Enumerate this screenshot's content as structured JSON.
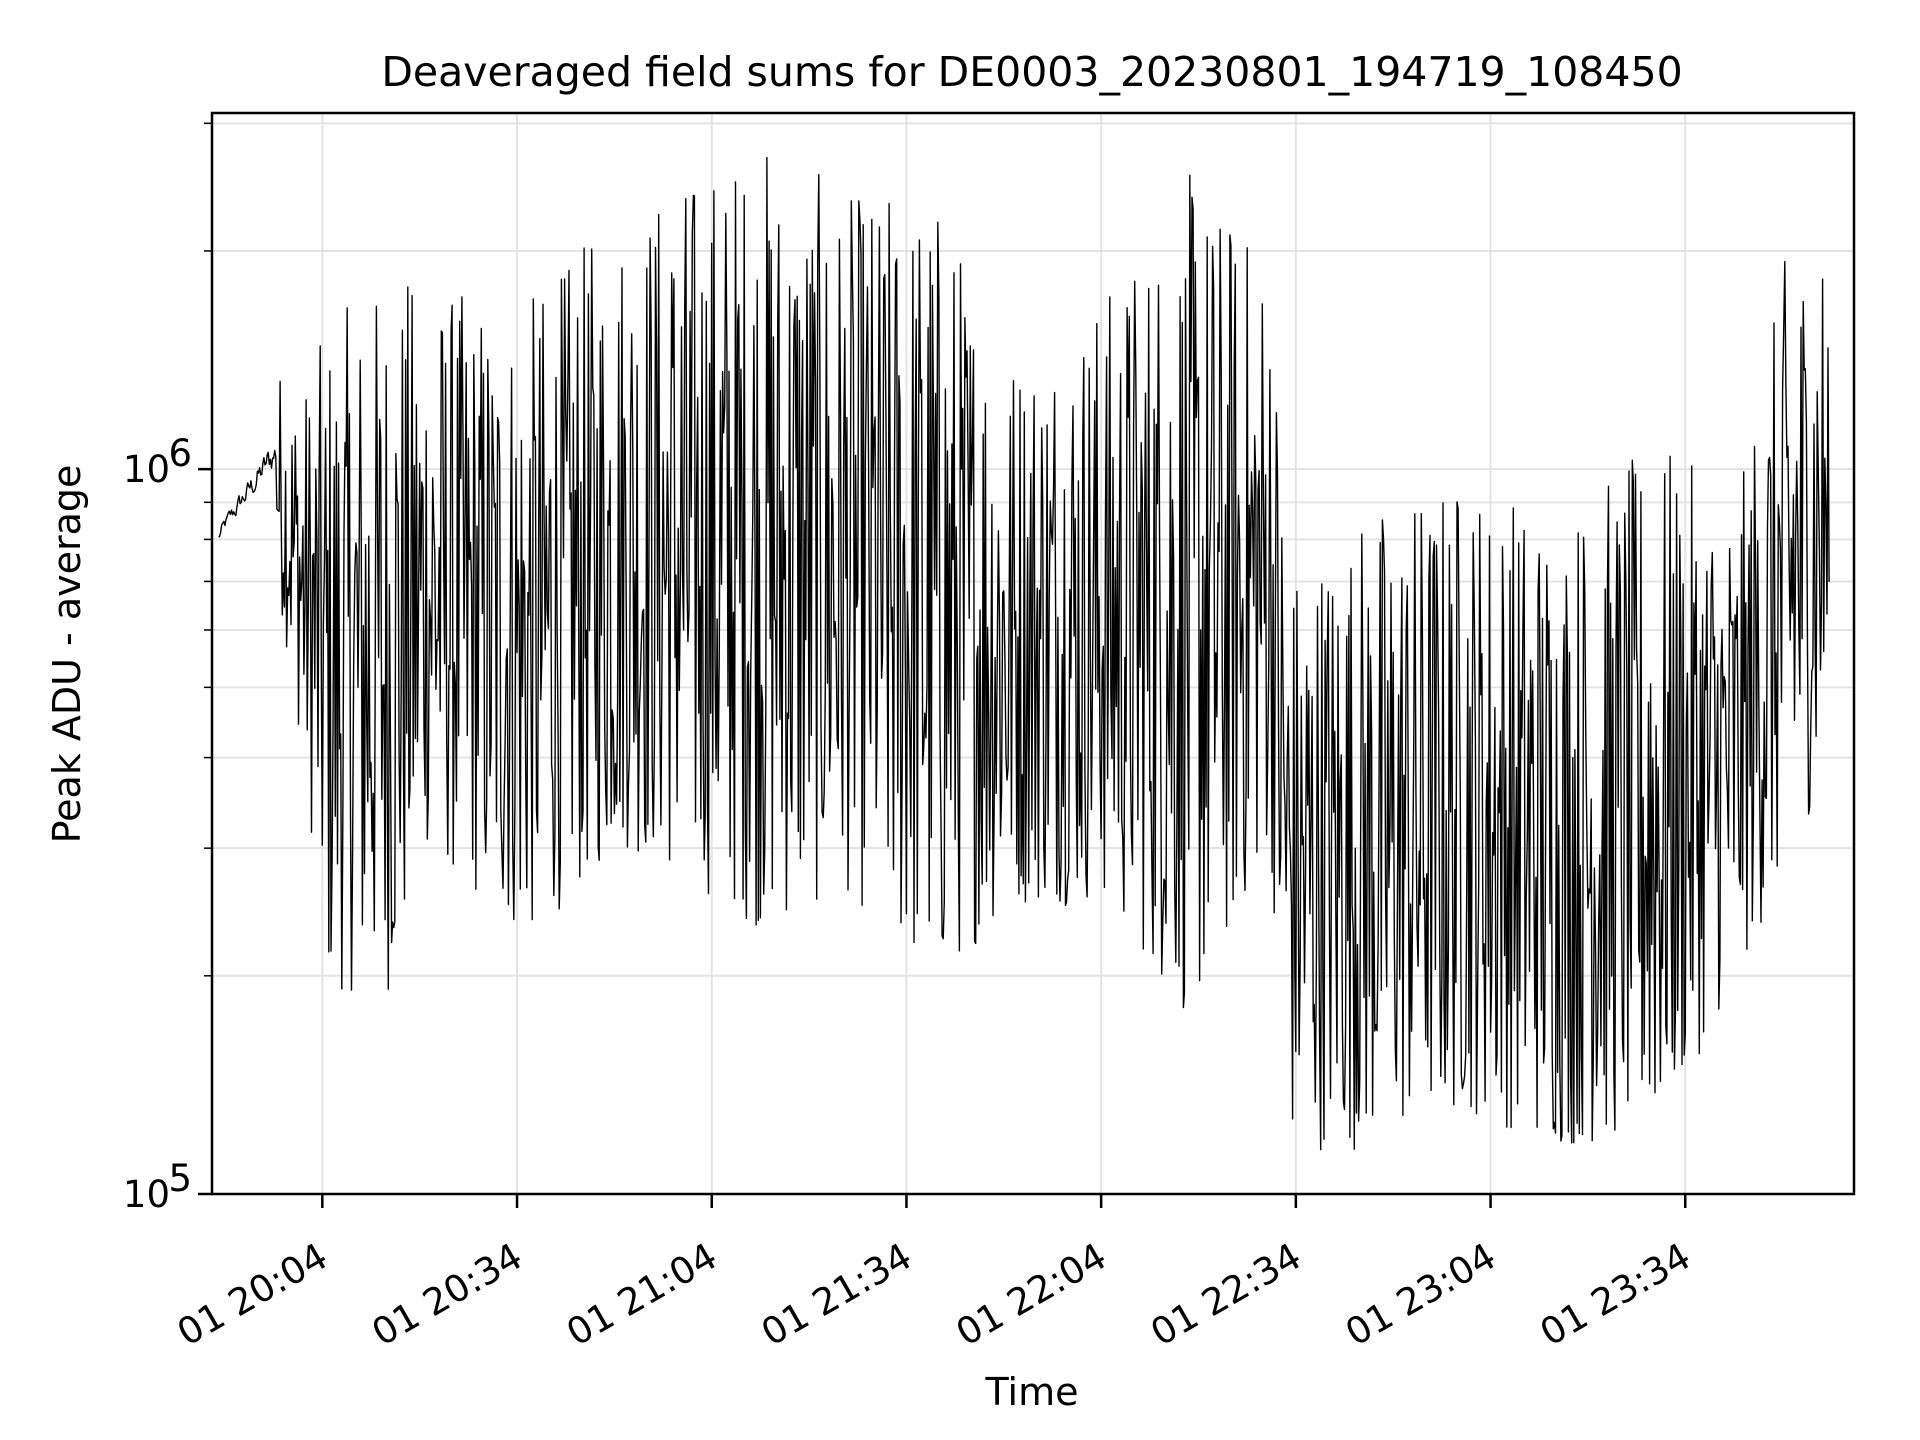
{
  "chart_data": {
    "type": "line",
    "title": "Deaveraged field sums for DE0003_20230801_194719_108450",
    "xlabel": "Time",
    "ylabel": "Peak ADU - average",
    "yscale": "log",
    "ylim": [
      100000,
      3100000
    ],
    "y_ticks": [
      {
        "value": 100000,
        "base": "10",
        "exp": "5"
      },
      {
        "value": 1000000,
        "base": "10",
        "exp": "6"
      }
    ],
    "x_ticks": [
      "01 20:04",
      "01 20:34",
      "01 21:04",
      "01 21:34",
      "01 22:04",
      "01 22:34",
      "01 23:04",
      "01 23:34"
    ],
    "x_tick_times": [
      "2023-08-01T20:04",
      "2023-08-01T20:34",
      "2023-08-01T21:04",
      "2023-08-01T21:34",
      "2023-08-01T22:04",
      "2023-08-01T22:34",
      "2023-08-01T23:04",
      "2023-08-01T23:34"
    ],
    "xlim": [
      "2023-08-01T19:47",
      "2023-08-02T00:00"
    ],
    "grid": true,
    "line_color": "#000000",
    "series": [
      {
        "x_start": "2023-08-01T19:48",
        "sample_interval_seconds": 10,
        "points": 1490,
        "envelope": [
          {
            "time": "2023-08-01T19:48",
            "min": 700000,
            "max": 900000
          },
          {
            "time": "2023-08-01T19:57",
            "min": 700000,
            "max": 1400000
          },
          {
            "time": "2023-08-01T20:01",
            "min": 400000,
            "max": 1300000
          },
          {
            "time": "2023-08-01T20:05",
            "min": 190000,
            "max": 1600000
          },
          {
            "time": "2023-08-01T20:15",
            "min": 190000,
            "max": 1900000
          },
          {
            "time": "2023-08-01T20:20",
            "min": 300000,
            "max": 1800000
          },
          {
            "time": "2023-08-01T20:35",
            "min": 220000,
            "max": 1700000
          },
          {
            "time": "2023-08-01T20:50",
            "min": 300000,
            "max": 2300000
          },
          {
            "time": "2023-08-01T21:00",
            "min": 270000,
            "max": 2600000
          },
          {
            "time": "2023-08-01T21:12",
            "min": 230000,
            "max": 2900000
          },
          {
            "time": "2023-08-01T21:25",
            "min": 260000,
            "max": 2400000
          },
          {
            "time": "2023-08-01T21:38",
            "min": 190000,
            "max": 2500000
          },
          {
            "time": "2023-08-01T21:50",
            "min": 250000,
            "max": 1500000
          },
          {
            "time": "2023-08-01T22:05",
            "min": 250000,
            "max": 1800000
          },
          {
            "time": "2023-08-01T22:18",
            "min": 170000,
            "max": 2600000
          },
          {
            "time": "2023-08-01T22:30",
            "min": 300000,
            "max": 2000000
          },
          {
            "time": "2023-08-01T22:33",
            "min": 115000,
            "max": 750000
          },
          {
            "time": "2023-08-01T22:45",
            "min": 115000,
            "max": 900000
          },
          {
            "time": "2023-08-01T23:00",
            "min": 130000,
            "max": 1000000
          },
          {
            "time": "2023-08-01T23:15",
            "min": 115000,
            "max": 900000
          },
          {
            "time": "2023-08-01T23:30",
            "min": 120000,
            "max": 1100000
          },
          {
            "time": "2023-08-01T23:42",
            "min": 200000,
            "max": 900000
          },
          {
            "time": "2023-08-01T23:50",
            "min": 280000,
            "max": 2100000
          },
          {
            "time": "2023-08-02T00:00",
            "min": 500000,
            "max": 2200000
          }
        ]
      }
    ]
  }
}
